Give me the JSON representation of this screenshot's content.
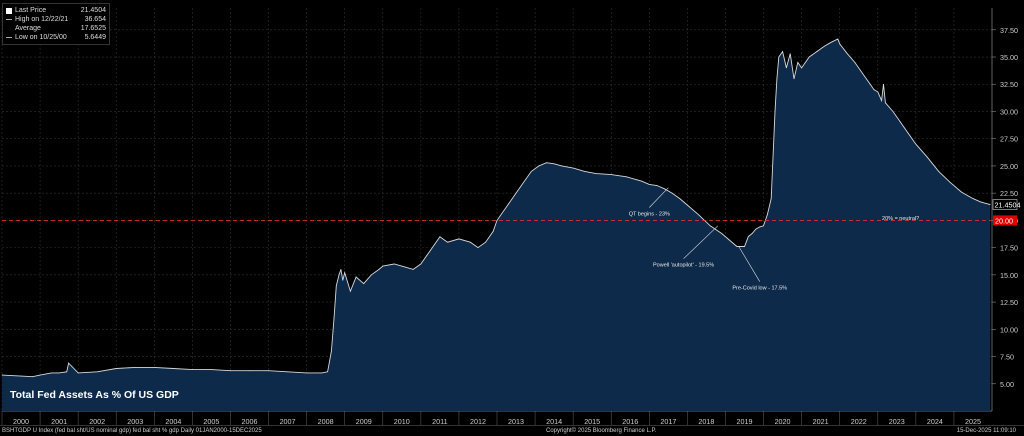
{
  "legend": {
    "last_price_label": "Last Price",
    "last_price_value": "21.4504",
    "high_label": "High on 12/22/21",
    "high_value": "36.654",
    "average_label": "Average",
    "average_value": "17.6525",
    "low_label": "Low on 10/25/00",
    "low_value": "5.6449"
  },
  "footer": {
    "left": "BSHTGDP U Index (fed bal sht/US nominal gdp) fed bal sht % gdp Daily 01JAN2000-15DEC2025",
    "center": "Copyright© 2025 Bloomberg Finance L.P.",
    "right": "15-Dec-2025 11:09:10"
  },
  "colors": {
    "area": "#0d2a4a",
    "line": "#d8d8d8",
    "reference": "#ff3030",
    "grid": "#2f2f2f"
  },
  "chart_data": {
    "type": "area",
    "title": "Total Fed Assets As % Of US GDP",
    "xlabel": "",
    "ylabel": "",
    "xlim": [
      2000.0,
      2026.0
    ],
    "ylim": [
      2.5,
      39.5
    ],
    "x_ticks": [
      "2000",
      "2001",
      "2002",
      "2003",
      "2004",
      "2005",
      "2006",
      "2007",
      "2008",
      "2009",
      "2010",
      "2011",
      "2012",
      "2013",
      "2014",
      "2015",
      "2016",
      "2017",
      "2018",
      "2019",
      "2020",
      "2021",
      "2022",
      "2023",
      "2024",
      "2025"
    ],
    "y_ticks": [
      5,
      7.5,
      10,
      12.5,
      15,
      17.5,
      20,
      22.5,
      25,
      27.5,
      30,
      32.5,
      35,
      37.5
    ],
    "y_tick_labels": [
      "5.00",
      "7.50",
      "10.00",
      "12.50",
      "15.00",
      "17.50",
      "20.00",
      "22.50",
      "25.00",
      "27.50",
      "30.00",
      "32.50",
      "35.00",
      "37.50"
    ],
    "grid": true,
    "series": [
      {
        "x": [
          2000.0,
          2000.5,
          2000.8,
          2001.0,
          2001.3,
          2001.5,
          2001.7,
          2001.75,
          2002.0,
          2002.5,
          2003.0,
          2003.5,
          2004.0,
          2004.5,
          2005.0,
          2005.5,
          2006.0,
          2006.5,
          2007.0,
          2007.5,
          2008.0,
          2008.4,
          2008.55,
          2008.65,
          2008.72,
          2008.78,
          2008.85,
          2008.9,
          2008.95,
          2009.0,
          2009.15,
          2009.3,
          2009.5,
          2009.7,
          2009.9,
          2010.0,
          2010.3,
          2010.6,
          2010.8,
          2011.0,
          2011.2,
          2011.5,
          2011.7,
          2012.0,
          2012.3,
          2012.5,
          2012.7,
          2012.9,
          2013.0,
          2013.3,
          2013.6,
          2013.9,
          2014.1,
          2014.3,
          2014.5,
          2014.7,
          2015.0,
          2015.3,
          2015.6,
          2016.0,
          2016.4,
          2016.8,
          2017.0,
          2017.2,
          2017.4,
          2017.6,
          2017.8,
          2018.0,
          2018.3,
          2018.6,
          2018.9,
          2019.1,
          2019.3,
          2019.5,
          2019.6,
          2019.7,
          2019.8,
          2019.9,
          2020.0,
          2020.1,
          2020.2,
          2020.3,
          2020.35,
          2020.4,
          2020.5,
          2020.6,
          2020.7,
          2020.8,
          2020.9,
          2021.0,
          2021.2,
          2021.4,
          2021.6,
          2021.8,
          2021.95,
          2022.0,
          2022.2,
          2022.4,
          2022.6,
          2022.8,
          2022.9,
          2023.0,
          2023.1,
          2023.15,
          2023.2,
          2023.4,
          2023.6,
          2023.8,
          2024.0,
          2024.3,
          2024.6,
          2024.9,
          2025.2,
          2025.5,
          2025.7,
          2025.95
        ],
        "y": [
          5.8,
          5.7,
          5.65,
          5.8,
          6.0,
          6.0,
          6.1,
          6.9,
          6.0,
          6.1,
          6.4,
          6.5,
          6.5,
          6.4,
          6.3,
          6.3,
          6.2,
          6.2,
          6.2,
          6.1,
          6.0,
          6.0,
          6.1,
          8.0,
          11.0,
          14.0,
          15.0,
          15.5,
          14.5,
          15.2,
          13.5,
          14.8,
          14.2,
          15.0,
          15.5,
          15.8,
          16.0,
          15.7,
          15.5,
          16.0,
          17.0,
          18.5,
          18.0,
          18.3,
          18.0,
          17.5,
          18.0,
          19.0,
          20.0,
          21.5,
          23.0,
          24.5,
          25.0,
          25.3,
          25.2,
          25.0,
          24.8,
          24.5,
          24.3,
          24.2,
          24.0,
          23.6,
          23.3,
          23.2,
          22.9,
          22.5,
          22.0,
          21.4,
          20.5,
          19.5,
          18.8,
          18.2,
          17.6,
          17.6,
          18.5,
          18.8,
          19.2,
          19.4,
          19.5,
          20.5,
          22.0,
          30.0,
          33.0,
          35.0,
          35.5,
          34.0,
          35.3,
          33.0,
          34.5,
          34.0,
          35.0,
          35.5,
          36.0,
          36.4,
          36.65,
          36.2,
          35.3,
          34.5,
          33.5,
          32.5,
          32.0,
          31.8,
          31.0,
          32.5,
          30.8,
          30.0,
          29.0,
          28.0,
          27.0,
          25.8,
          24.5,
          23.5,
          22.6,
          22.0,
          21.7,
          21.45
        ]
      }
    ],
    "last_value_label": "21.4504",
    "reference_line": {
      "y": 20,
      "label": "20.00"
    },
    "annotations": [
      {
        "text": "QT begins - 23%",
        "x": 2017.5,
        "y": 23.0,
        "lx": 2017.0,
        "ly": 21.0
      },
      {
        "text": "Powell 'autopilot' - 19.5%",
        "x": 2018.8,
        "y": 19.5,
        "lx": 2017.9,
        "ly": 16.3
      },
      {
        "text": "Pre-Covid low - 17.5%",
        "x": 2019.35,
        "y": 17.6,
        "lx": 2019.9,
        "ly": 14.2
      },
      {
        "text": "20% = neutral?",
        "x": 2023.6,
        "y": 20.6,
        "lx": 2023.6,
        "ly": 20.6
      }
    ]
  }
}
